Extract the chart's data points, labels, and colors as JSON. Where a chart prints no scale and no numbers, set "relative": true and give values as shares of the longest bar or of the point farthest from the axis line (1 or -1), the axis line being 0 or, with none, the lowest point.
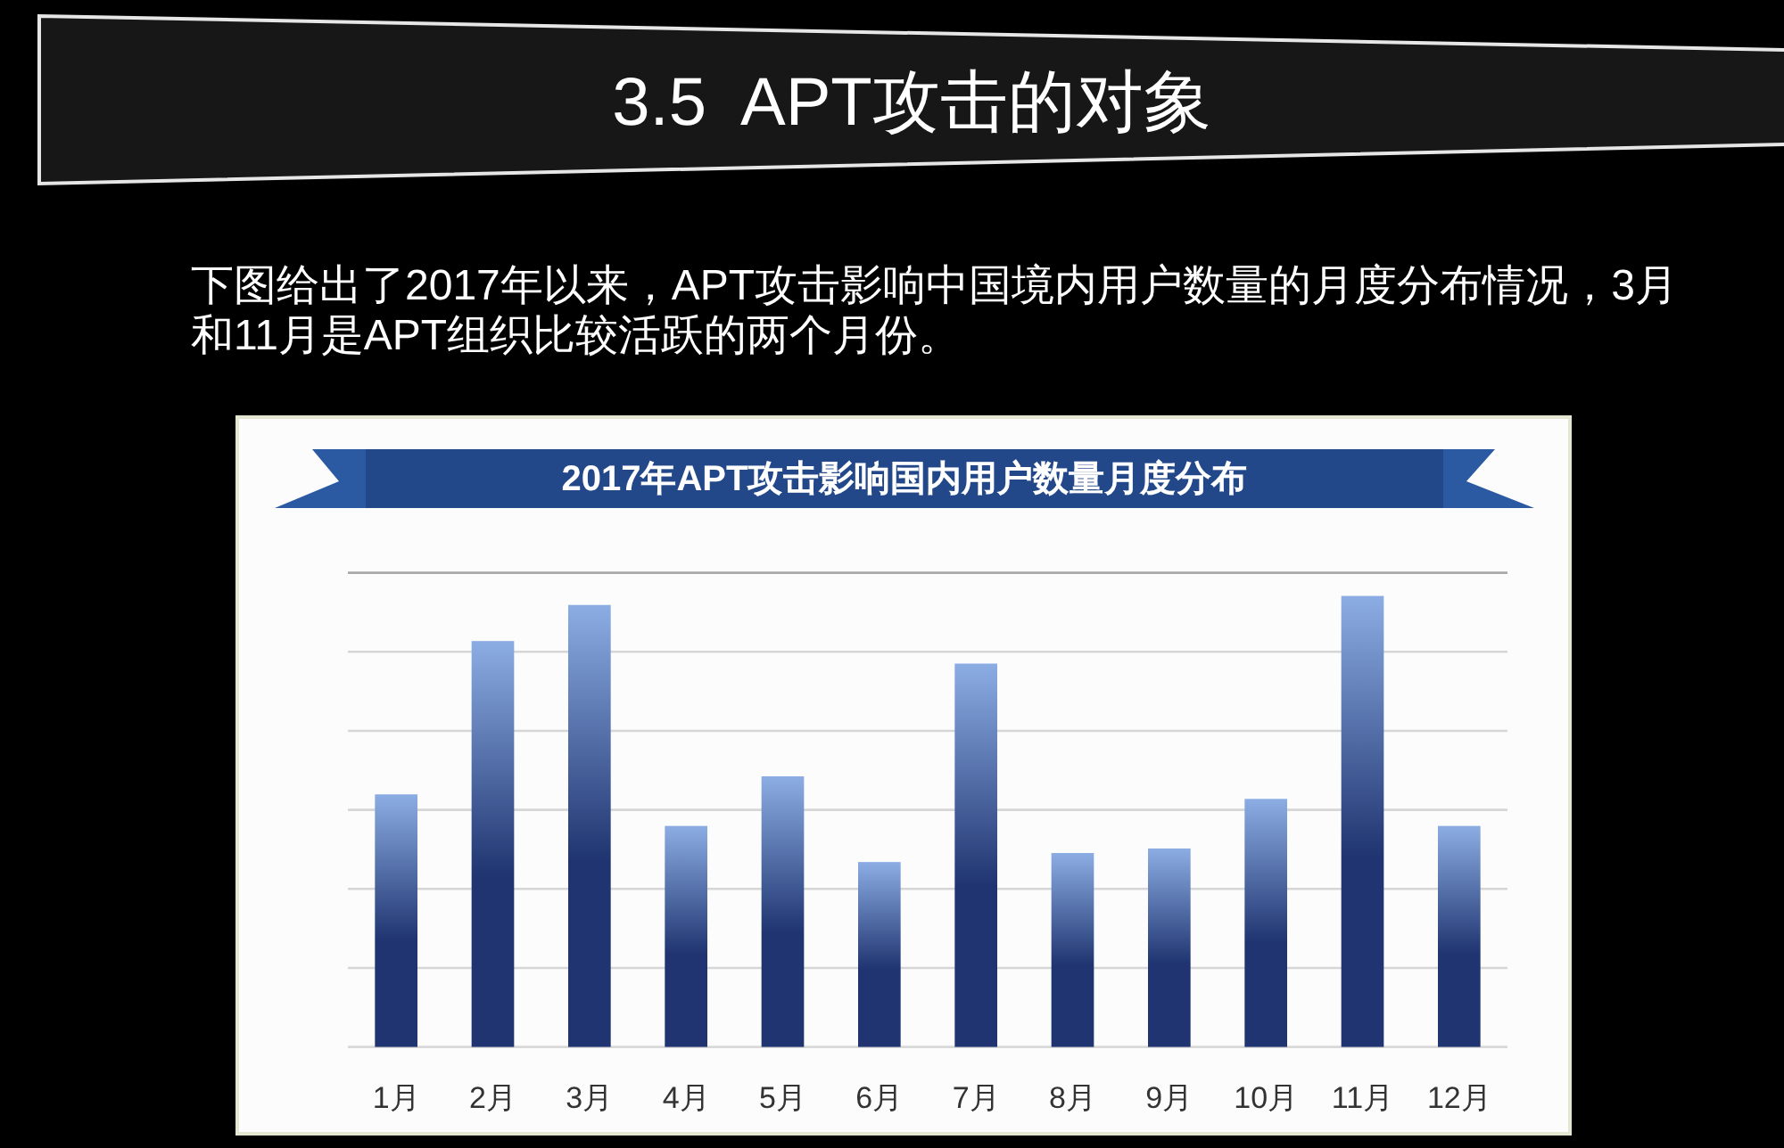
{
  "chart_data": {
    "type": "bar",
    "title": "3.5  APT攻击的对象",
    "subtitle": "下图给出了2017年以来，APT攻击影响中国境内用户数量的月度分布情况，3月和11月是APT组织比较活跃的两个月份。",
    "annotations": [
      "2017年APT攻击影响国内用户数量月度分布"
    ],
    "categories": [
      "1月",
      "2月",
      "3月",
      "4月",
      "5月",
      "6月",
      "7月",
      "8月",
      "9月",
      "10月",
      "11月",
      "12月"
    ],
    "values": [
      0.56,
      0.9,
      0.98,
      0.49,
      0.6,
      0.41,
      0.85,
      0.43,
      0.44,
      0.55,
      1,
      0.49
    ],
    "color": "#1f3470",
    "relative": true,
    "grid": "y"
  }
}
